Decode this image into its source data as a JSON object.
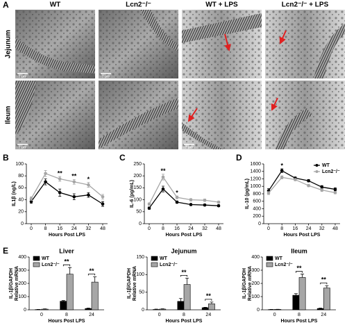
{
  "panel_a": {
    "panel": "A",
    "columns": [
      "WT",
      "Lcn2⁻/⁻",
      "WT + LPS",
      "Lcn2⁻/⁻ + LPS"
    ],
    "rows": [
      "Jejunum",
      "Ileum"
    ],
    "scale_bar": "1 μm"
  },
  "chart_data": [
    {
      "type": "line",
      "panel": "B",
      "ylabel": "IL1β (ng/L)",
      "xlabel": "Hours Post LPS",
      "categories": [
        "0",
        "8",
        "16",
        "24",
        "32",
        "48"
      ],
      "ylim": [
        0,
        100
      ],
      "yticks": [
        0,
        20,
        40,
        60,
        80,
        100
      ],
      "series": [
        {
          "name": "WT",
          "color": "#000000",
          "values": [
            37,
            70,
            52,
            45,
            48,
            33
          ],
          "errors": [
            3,
            5,
            6,
            5,
            4,
            4
          ]
        },
        {
          "name": "Lcn2⁻/⁻",
          "color": "#a6a6a6",
          "values": [
            42,
            84,
            75,
            70,
            65,
            45
          ],
          "errors": [
            3,
            5,
            4,
            4,
            4,
            4
          ]
        }
      ],
      "significance": [
        null,
        null,
        "**",
        "**",
        "*",
        null
      ]
    },
    {
      "type": "line",
      "panel": "C",
      "ylabel": "IL-6 (pg/mL)",
      "xlabel": "Hours Post LPS",
      "categories": [
        "0",
        "8",
        "16",
        "24",
        "32",
        "48"
      ],
      "ylim": [
        0,
        250
      ],
      "yticks": [
        0,
        50,
        100,
        150,
        200,
        250
      ],
      "series": [
        {
          "name": "WT",
          "color": "#000000",
          "values": [
            65,
            145,
            90,
            80,
            78,
            75
          ],
          "errors": [
            5,
            12,
            5,
            4,
            4,
            4
          ]
        },
        {
          "name": "Lcn2⁻/⁻",
          "color": "#a6a6a6",
          "values": [
            82,
            195,
            110,
            100,
            98,
            90
          ],
          "errors": [
            5,
            12,
            6,
            5,
            5,
            4
          ]
        }
      ],
      "significance": [
        null,
        "**",
        "*",
        null,
        null,
        null
      ]
    },
    {
      "type": "line",
      "panel": "D",
      "ylabel": "IL-10 (pg/mL)",
      "xlabel": "Hours Post LPS",
      "categories": [
        "0",
        "8",
        "16",
        "24",
        "32",
        "48"
      ],
      "ylim": [
        0,
        1600
      ],
      "yticks": [
        0,
        200,
        400,
        600,
        800,
        1000,
        1200,
        1400,
        1600
      ],
      "series": [
        {
          "name": "WT",
          "color": "#000000",
          "values": [
            880,
            1420,
            1220,
            1150,
            980,
            920
          ],
          "errors": [
            60,
            50,
            30,
            30,
            40,
            40
          ]
        },
        {
          "name": "Lcn2⁻/⁻",
          "color": "#a6a6a6",
          "values": [
            820,
            1240,
            1180,
            1020,
            900,
            830
          ],
          "errors": [
            40,
            40,
            30,
            30,
            40,
            30
          ]
        }
      ],
      "significance": [
        null,
        "*",
        null,
        null,
        null,
        null
      ],
      "legend": "upper right"
    },
    {
      "type": "bar",
      "panel": "E",
      "title": "Liver",
      "ylabel": [
        "IL-1β/GAPDH",
        "Relative mRNA"
      ],
      "xlabel": "Hours Post LPS",
      "categories": [
        "0",
        "8",
        "24"
      ],
      "ylim": [
        0,
        400
      ],
      "yticks": [
        0,
        100,
        200,
        300,
        400
      ],
      "series": [
        {
          "name": "WT",
          "color": "#000000",
          "values": [
            2,
            65,
            10
          ],
          "errors": [
            1,
            5,
            3
          ]
        },
        {
          "name": "Lcn2⁻/⁻",
          "color": "#a6a6a6",
          "values": [
            5,
            270,
            210
          ],
          "errors": [
            2,
            50,
            40
          ]
        }
      ],
      "significance": [
        null,
        "**",
        "**"
      ],
      "legend": "upper left"
    },
    {
      "type": "bar",
      "title": "Jejunum",
      "ylabel": [
        "IL-1β/GAPDH",
        "Relative mRNA"
      ],
      "xlabel": "Hours Post LPS",
      "categories": [
        "0",
        "8",
        "24"
      ],
      "ylim": [
        0,
        150
      ],
      "yticks": [
        0,
        50,
        100,
        150
      ],
      "series": [
        {
          "name": "WT",
          "color": "#000000",
          "values": [
            1,
            24,
            6
          ],
          "errors": [
            1,
            8,
            1
          ]
        },
        {
          "name": "Lcn2⁻/⁻",
          "color": "#a6a6a6",
          "values": [
            2,
            72,
            17
          ],
          "errors": [
            1,
            18,
            5
          ]
        }
      ],
      "significance": [
        null,
        "**",
        "**"
      ],
      "legend": "upper left"
    },
    {
      "type": "bar",
      "title": "Ileum",
      "ylabel": [
        "IL-1β/GAPDH",
        "Relative mRNA"
      ],
      "xlabel": "Hours Post LPS",
      "categories": [
        "0",
        "8",
        "24"
      ],
      "ylim": [
        0,
        400
      ],
      "yticks": [
        0,
        100,
        200,
        300,
        400
      ],
      "series": [
        {
          "name": "WT",
          "color": "#000000",
          "values": [
            2,
            110,
            10
          ],
          "errors": [
            1,
            12,
            3
          ]
        },
        {
          "name": "Lcn2⁻/⁻",
          "color": "#a6a6a6",
          "values": [
            3,
            245,
            165
          ],
          "errors": [
            1,
            25,
            18
          ]
        }
      ],
      "significance": [
        null,
        "**",
        "**"
      ],
      "legend": "upper left"
    }
  ]
}
